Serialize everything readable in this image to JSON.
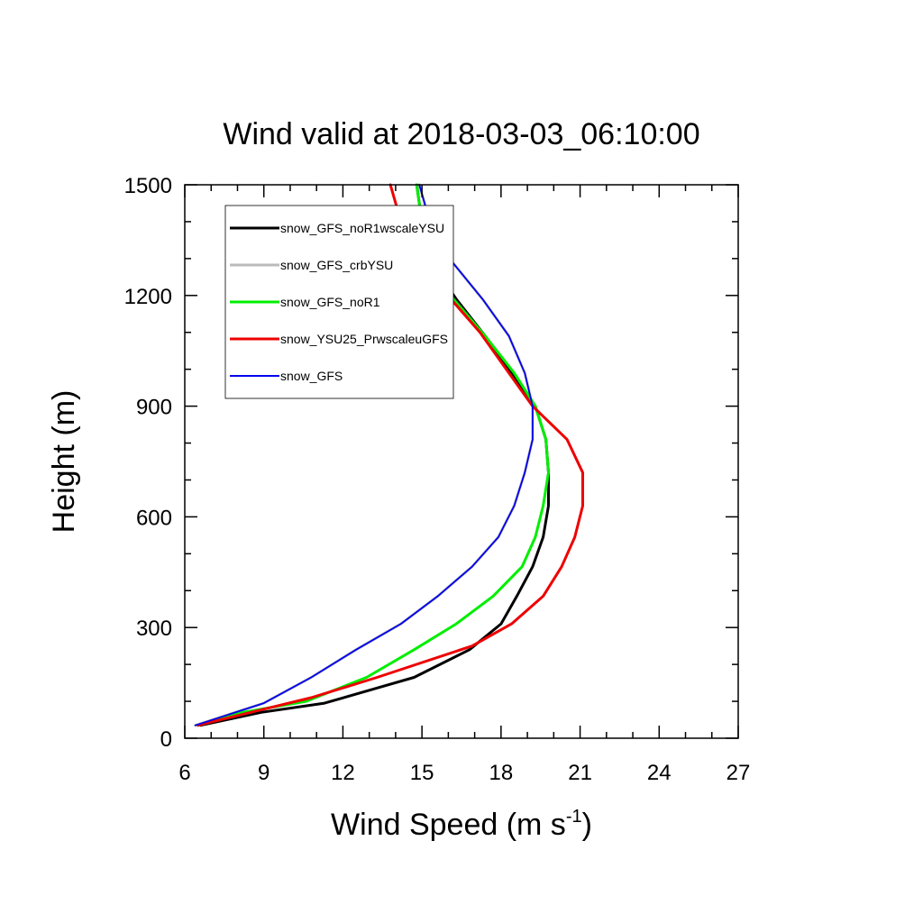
{
  "chart_data": {
    "type": "line",
    "title": "Wind valid at 2018-03-03_06:10:00",
    "xlabel": {
      "main": "Wind Speed (m s",
      "sup": "-1",
      "end": ")"
    },
    "ylabel": "Height (m)",
    "xlim": [
      6,
      27
    ],
    "ylim": [
      0,
      1500
    ],
    "xticks": [
      6,
      9,
      12,
      15,
      18,
      21,
      24,
      27
    ],
    "yticks": [
      0,
      300,
      600,
      900,
      1200,
      1500
    ],
    "legend_position": "top-left",
    "series": [
      {
        "name": "snow_GFS_noR1wscaleYSU",
        "color": "#000000",
        "points": [
          [
            6.6,
            35
          ],
          [
            8.9,
            70
          ],
          [
            11.3,
            95
          ],
          [
            14.7,
            165
          ],
          [
            16.8,
            240
          ],
          [
            18.0,
            310
          ],
          [
            18.6,
            385
          ],
          [
            19.2,
            465
          ],
          [
            19.6,
            545
          ],
          [
            19.8,
            630
          ],
          [
            19.8,
            720
          ],
          [
            19.7,
            810
          ],
          [
            19.3,
            900
          ],
          [
            18.4,
            990
          ],
          [
            17.4,
            1090
          ],
          [
            16.3,
            1190
          ],
          [
            15.3,
            1295
          ],
          [
            15.0,
            1400
          ],
          [
            14.8,
            1500
          ]
        ]
      },
      {
        "name": "snow_GFS_crbYSU",
        "color": "#bbbbbb",
        "points": [
          [
            6.4,
            35
          ],
          [
            9.0,
            95
          ],
          [
            10.8,
            165
          ],
          [
            12.5,
            240
          ],
          [
            14.2,
            310
          ],
          [
            15.6,
            385
          ],
          [
            16.9,
            465
          ],
          [
            17.9,
            545
          ],
          [
            18.5,
            630
          ],
          [
            18.9,
            720
          ],
          [
            19.2,
            810
          ],
          [
            19.2,
            900
          ],
          [
            18.9,
            990
          ],
          [
            18.3,
            1090
          ],
          [
            17.3,
            1190
          ],
          [
            16.1,
            1295
          ],
          [
            15.3,
            1400
          ],
          [
            14.9,
            1500
          ]
        ]
      },
      {
        "name": "snow_GFS_noR1",
        "color": "#00ee00",
        "points": [
          [
            6.5,
            35
          ],
          [
            8.2,
            70
          ],
          [
            10.6,
            100
          ],
          [
            12.9,
            165
          ],
          [
            14.7,
            240
          ],
          [
            16.3,
            310
          ],
          [
            17.7,
            385
          ],
          [
            18.8,
            465
          ],
          [
            19.3,
            545
          ],
          [
            19.6,
            630
          ],
          [
            19.8,
            720
          ],
          [
            19.7,
            810
          ],
          [
            19.3,
            900
          ],
          [
            18.5,
            990
          ],
          [
            17.4,
            1090
          ],
          [
            16.2,
            1190
          ],
          [
            15.3,
            1295
          ],
          [
            15.0,
            1400
          ],
          [
            14.8,
            1500
          ]
        ]
      },
      {
        "name": "snow_YSU25_PrwscaleuGFS",
        "color": "#ee0000",
        "points": [
          [
            6.5,
            35
          ],
          [
            8.5,
            70
          ],
          [
            10.8,
            110
          ],
          [
            13.3,
            165
          ],
          [
            16.9,
            250
          ],
          [
            18.4,
            310
          ],
          [
            19.6,
            385
          ],
          [
            20.3,
            465
          ],
          [
            20.8,
            545
          ],
          [
            21.1,
            630
          ],
          [
            21.1,
            720
          ],
          [
            20.5,
            810
          ],
          [
            19.2,
            900
          ],
          [
            18.2,
            1000
          ],
          [
            17.2,
            1100
          ],
          [
            16.1,
            1190
          ],
          [
            14.8,
            1295
          ],
          [
            14.2,
            1400
          ],
          [
            13.8,
            1500
          ]
        ]
      },
      {
        "name": "snow_GFS",
        "color": "#0000ee",
        "points": [
          [
            6.4,
            35
          ],
          [
            9.0,
            95
          ],
          [
            10.8,
            165
          ],
          [
            12.5,
            240
          ],
          [
            14.2,
            310
          ],
          [
            15.6,
            385
          ],
          [
            16.9,
            465
          ],
          [
            17.9,
            545
          ],
          [
            18.5,
            630
          ],
          [
            18.9,
            720
          ],
          [
            19.2,
            810
          ],
          [
            19.2,
            900
          ],
          [
            18.9,
            990
          ],
          [
            18.3,
            1090
          ],
          [
            17.3,
            1190
          ],
          [
            16.1,
            1295
          ],
          [
            15.3,
            1400
          ],
          [
            14.9,
            1500
          ]
        ]
      }
    ]
  }
}
